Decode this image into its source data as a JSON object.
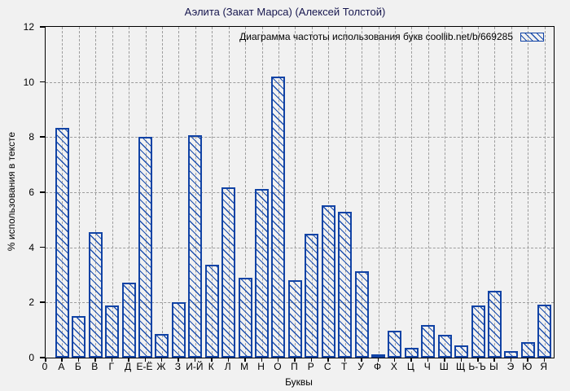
{
  "chart_data": {
    "type": "bar",
    "title": "Аэлита (Закат Марса) (Алексей Толстой)",
    "legend": "Диаграмма частоты использования букв coollib.net/b/669285",
    "xlabel": "Буквы",
    "ylabel": "% использования в тексте",
    "ylim": [
      0,
      12
    ],
    "yticks": [
      0,
      2,
      4,
      6,
      8,
      10,
      12
    ],
    "grid": "dashed, horizontal and vertical",
    "legend_position": "top-right inside plot",
    "categories": [
      "0",
      "А",
      "Б",
      "В",
      "Г",
      "Д",
      "Е-Ё",
      "Ж",
      "З",
      "И-Й",
      "К",
      "Л",
      "М",
      "Н",
      "О",
      "П",
      "Р",
      "С",
      "Т",
      "У",
      "Ф",
      "Х",
      "Ц",
      "Ч",
      "Ш",
      "Щ",
      "Ь-Ъ",
      "Ы",
      "Э",
      "Ю",
      "Я"
    ],
    "values": [
      null,
      8.35,
      1.52,
      4.55,
      1.9,
      2.73,
      8.0,
      0.85,
      2.0,
      8.07,
      3.37,
      6.18,
      2.9,
      6.12,
      10.2,
      2.8,
      4.48,
      5.54,
      5.29,
      3.14,
      0.07,
      0.98,
      0.36,
      1.17,
      0.84,
      0.45,
      1.89,
      2.43,
      0.24,
      0.55,
      1.93
    ],
    "colors": {
      "bar_border": "#1143a5",
      "bar_hatch": "#1d4fae",
      "grid": "#9c9c9c",
      "axis": "#000000",
      "background": "#f1f1f1",
      "title_text": "#16164e"
    }
  }
}
